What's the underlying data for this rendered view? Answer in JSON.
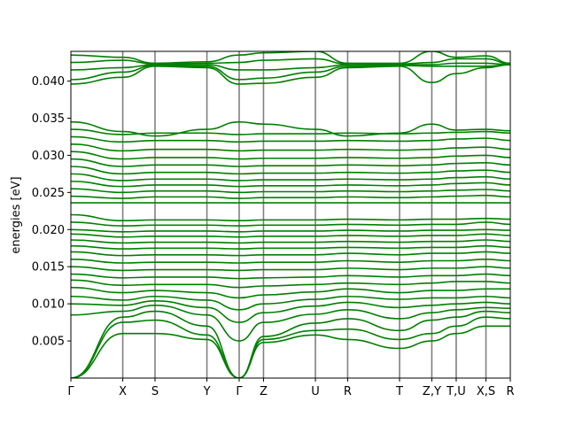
{
  "chart_data": {
    "type": "line",
    "title": "",
    "xlabel": "",
    "ylabel": "energies [eV]",
    "ylim": [
      0,
      0.044
    ],
    "y_ticks": [
      0.005,
      0.01,
      0.015,
      0.02,
      0.025,
      0.03,
      0.035,
      0.04
    ],
    "y_tick_labels": [
      "0.005",
      "0.010",
      "0.015",
      "0.020",
      "0.025",
      "0.030",
      "0.035",
      "0.040"
    ],
    "x_range": [
      0,
      1
    ],
    "kpoints": [
      {
        "label": "Γ",
        "x": 0.0
      },
      {
        "label": "X",
        "x": 0.1181
      },
      {
        "label": "S",
        "x": 0.1915
      },
      {
        "label": "Y",
        "x": 0.3096
      },
      {
        "label": "Γ",
        "x": 0.383
      },
      {
        "label": "Z",
        "x": 0.4384
      },
      {
        "label": "U",
        "x": 0.5565
      },
      {
        "label": "R",
        "x": 0.6299
      },
      {
        "label": "T",
        "x": 0.748
      },
      {
        "label": "Z,Y",
        "x": 0.8214
      },
      {
        "label": "T,U",
        "x": 0.8769
      },
      {
        "label": "X,S",
        "x": 0.9446
      },
      {
        "label": "R",
        "x": 1.0
      }
    ],
    "grid": false,
    "legend": "none",
    "colors": {
      "bands": "#008000",
      "kpoint_lines": "#808080"
    },
    "bands": [
      {
        "name": "",
        "values": [
          0.0,
          0.006,
          0.006,
          0.0052,
          0.0,
          0.0048,
          0.0058,
          0.0052,
          0.004,
          0.005,
          0.006,
          0.007,
          0.007
        ]
      },
      {
        "name": "",
        "values": [
          0.0,
          0.0075,
          0.0078,
          0.0058,
          0.0,
          0.0052,
          0.0064,
          0.0066,
          0.0052,
          0.006,
          0.007,
          0.0082,
          0.008
        ]
      },
      {
        "name": "",
        "values": [
          0.0,
          0.0082,
          0.009,
          0.007,
          0.0,
          0.0056,
          0.0074,
          0.008,
          0.0064,
          0.0078,
          0.0082,
          0.009,
          0.0088
        ]
      },
      {
        "name": "",
        "values": [
          0.0085,
          0.009,
          0.0098,
          0.0085,
          0.005,
          0.0075,
          0.0086,
          0.0092,
          0.008,
          0.0088,
          0.0092,
          0.0095,
          0.0094
        ]
      },
      {
        "name": "",
        "values": [
          0.01,
          0.0098,
          0.0104,
          0.0095,
          0.0075,
          0.0088,
          0.0097,
          0.0102,
          0.0095,
          0.0098,
          0.01,
          0.0102,
          0.01
        ]
      },
      {
        "name": "",
        "values": [
          0.011,
          0.0105,
          0.011,
          0.0105,
          0.0092,
          0.01,
          0.0106,
          0.011,
          0.0106,
          0.0108,
          0.0108,
          0.011,
          0.0108
        ]
      },
      {
        "name": "",
        "values": [
          0.0122,
          0.0115,
          0.0118,
          0.0115,
          0.0108,
          0.0112,
          0.0116,
          0.012,
          0.0115,
          0.0118,
          0.0118,
          0.012,
          0.012
        ]
      },
      {
        "name": "",
        "values": [
          0.0132,
          0.0125,
          0.0126,
          0.0126,
          0.0122,
          0.0124,
          0.0126,
          0.0128,
          0.0126,
          0.0128,
          0.013,
          0.013,
          0.0128
        ]
      },
      {
        "name": "",
        "values": [
          0.014,
          0.0135,
          0.0136,
          0.0136,
          0.0134,
          0.0135,
          0.0136,
          0.0138,
          0.0136,
          0.0138,
          0.0138,
          0.014,
          0.0138
        ]
      },
      {
        "name": "",
        "values": [
          0.015,
          0.0145,
          0.0146,
          0.0146,
          0.0145,
          0.0146,
          0.0146,
          0.0148,
          0.0146,
          0.0148,
          0.0148,
          0.015,
          0.0148
        ]
      },
      {
        "name": "",
        "values": [
          0.016,
          0.0155,
          0.0156,
          0.0156,
          0.0155,
          0.0156,
          0.0156,
          0.0158,
          0.0156,
          0.0158,
          0.0158,
          0.016,
          0.0158
        ]
      },
      {
        "name": "",
        "values": [
          0.017,
          0.0165,
          0.0166,
          0.0166,
          0.0165,
          0.0166,
          0.0166,
          0.0168,
          0.0166,
          0.0168,
          0.0168,
          0.017,
          0.0168
        ]
      },
      {
        "name": "",
        "values": [
          0.0178,
          0.0174,
          0.0175,
          0.0175,
          0.0174,
          0.0175,
          0.0175,
          0.0176,
          0.0175,
          0.0176,
          0.0176,
          0.0178,
          0.0176
        ]
      },
      {
        "name": "",
        "values": [
          0.0186,
          0.0182,
          0.0183,
          0.0183,
          0.0182,
          0.0183,
          0.0183,
          0.0184,
          0.0183,
          0.0184,
          0.0184,
          0.0186,
          0.0184
        ]
      },
      {
        "name": "",
        "values": [
          0.0194,
          0.019,
          0.0191,
          0.0191,
          0.019,
          0.0191,
          0.0191,
          0.0192,
          0.0191,
          0.0192,
          0.0192,
          0.0194,
          0.0192
        ]
      },
      {
        "name": "",
        "values": [
          0.02,
          0.0197,
          0.0198,
          0.0198,
          0.0197,
          0.0198,
          0.0198,
          0.0199,
          0.0198,
          0.0199,
          0.0199,
          0.02,
          0.0199
        ]
      },
      {
        "name": "",
        "values": [
          0.021,
          0.0205,
          0.0206,
          0.0206,
          0.0205,
          0.0206,
          0.0206,
          0.0207,
          0.0206,
          0.0207,
          0.0207,
          0.021,
          0.0207
        ]
      },
      {
        "name": "",
        "values": [
          0.022,
          0.0212,
          0.0213,
          0.0213,
          0.0212,
          0.0213,
          0.0213,
          0.0214,
          0.0213,
          0.0214,
          0.0214,
          0.0215,
          0.0214
        ]
      },
      {
        "name": "",
        "values": [
          0.0236,
          0.0236,
          0.0236,
          0.0236,
          0.0236,
          0.0236,
          0.0236,
          0.0236,
          0.0236,
          0.0236,
          0.0236,
          0.0236,
          0.0236
        ]
      },
      {
        "name": "",
        "values": [
          0.0245,
          0.0242,
          0.0244,
          0.0244,
          0.0242,
          0.0243,
          0.0243,
          0.0244,
          0.0243,
          0.0244,
          0.0245,
          0.0246,
          0.0244
        ]
      },
      {
        "name": "",
        "values": [
          0.0255,
          0.025,
          0.0252,
          0.0252,
          0.025,
          0.0251,
          0.0251,
          0.0252,
          0.0251,
          0.0252,
          0.0253,
          0.0254,
          0.0252
        ]
      },
      {
        "name": "",
        "values": [
          0.0265,
          0.0258,
          0.026,
          0.026,
          0.0258,
          0.0259,
          0.0259,
          0.026,
          0.0259,
          0.026,
          0.0262,
          0.0263,
          0.026
        ]
      },
      {
        "name": "",
        "values": [
          0.0275,
          0.0266,
          0.0268,
          0.0268,
          0.0266,
          0.0267,
          0.0267,
          0.0268,
          0.0267,
          0.0268,
          0.027,
          0.0271,
          0.0268
        ]
      },
      {
        "name": "",
        "values": [
          0.0285,
          0.0275,
          0.0277,
          0.0277,
          0.0275,
          0.0276,
          0.0276,
          0.0277,
          0.0276,
          0.0277,
          0.0279,
          0.028,
          0.0277
        ]
      },
      {
        "name": "",
        "values": [
          0.0295,
          0.0285,
          0.0287,
          0.0287,
          0.0285,
          0.0286,
          0.0286,
          0.0287,
          0.0286,
          0.0287,
          0.0289,
          0.029,
          0.0287
        ]
      },
      {
        "name": "",
        "values": [
          0.0305,
          0.0295,
          0.0297,
          0.0297,
          0.0295,
          0.0296,
          0.0296,
          0.0297,
          0.0296,
          0.0297,
          0.0299,
          0.03,
          0.0297
        ]
      },
      {
        "name": "",
        "values": [
          0.0315,
          0.0306,
          0.0308,
          0.0308,
          0.0306,
          0.0307,
          0.0307,
          0.0308,
          0.0307,
          0.0308,
          0.031,
          0.0311,
          0.0308
        ]
      },
      {
        "name": "",
        "values": [
          0.0325,
          0.0318,
          0.032,
          0.032,
          0.0318,
          0.0319,
          0.0319,
          0.032,
          0.0319,
          0.032,
          0.0322,
          0.0323,
          0.032
        ]
      },
      {
        "name": "",
        "values": [
          0.0335,
          0.0328,
          0.033,
          0.033,
          0.0328,
          0.0329,
          0.0329,
          0.033,
          0.0329,
          0.033,
          0.0331,
          0.0332,
          0.033
        ]
      },
      {
        "name": "",
        "values": [
          0.0345,
          0.0332,
          0.0326,
          0.0335,
          0.0345,
          0.0342,
          0.0335,
          0.0326,
          0.033,
          0.0342,
          0.0334,
          0.0335,
          0.0333
        ]
      },
      {
        "name": "",
        "values": [
          0.0396,
          0.0405,
          0.042,
          0.0418,
          0.0396,
          0.0397,
          0.0405,
          0.0418,
          0.042,
          0.0398,
          0.041,
          0.0418,
          0.0422
        ]
      },
      {
        "name": "",
        "values": [
          0.0402,
          0.0412,
          0.0421,
          0.042,
          0.0402,
          0.0404,
          0.0412,
          0.042,
          0.0421,
          0.042,
          0.042,
          0.042,
          0.0422
        ]
      },
      {
        "name": "",
        "values": [
          0.0415,
          0.0418,
          0.0422,
          0.0422,
          0.0415,
          0.0415,
          0.0418,
          0.0422,
          0.0422,
          0.0422,
          0.0424,
          0.0424,
          0.0422
        ]
      },
      {
        "name": "",
        "values": [
          0.0425,
          0.0428,
          0.0423,
          0.0424,
          0.0425,
          0.0428,
          0.043,
          0.0423,
          0.0423,
          0.0425,
          0.043,
          0.043,
          0.0423
        ]
      },
      {
        "name": "",
        "values": [
          0.0435,
          0.0432,
          0.0424,
          0.0426,
          0.0435,
          0.0438,
          0.044,
          0.0424,
          0.0424,
          0.044,
          0.0432,
          0.0434,
          0.0424
        ]
      }
    ]
  }
}
